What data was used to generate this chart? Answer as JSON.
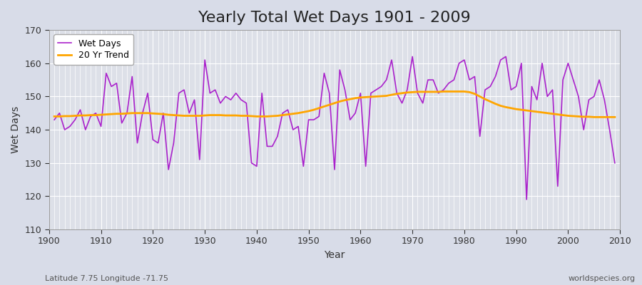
{
  "title": "Yearly Total Wet Days 1901 - 2009",
  "xlabel": "Year",
  "ylabel": "Wet Days",
  "subtitle": "Latitude 7.75 Longitude -71.75",
  "watermark": "worldspecies.org",
  "years": [
    1901,
    1902,
    1903,
    1904,
    1905,
    1906,
    1907,
    1908,
    1909,
    1910,
    1911,
    1912,
    1913,
    1914,
    1915,
    1916,
    1917,
    1918,
    1919,
    1920,
    1921,
    1922,
    1923,
    1924,
    1925,
    1926,
    1927,
    1928,
    1929,
    1930,
    1931,
    1932,
    1933,
    1934,
    1935,
    1936,
    1937,
    1938,
    1939,
    1940,
    1941,
    1942,
    1943,
    1944,
    1945,
    1946,
    1947,
    1948,
    1949,
    1950,
    1951,
    1952,
    1953,
    1954,
    1955,
    1956,
    1957,
    1958,
    1959,
    1960,
    1961,
    1962,
    1963,
    1964,
    1965,
    1966,
    1967,
    1968,
    1969,
    1970,
    1971,
    1972,
    1973,
    1974,
    1975,
    1976,
    1977,
    1978,
    1979,
    1980,
    1981,
    1982,
    1983,
    1984,
    1985,
    1986,
    1987,
    1988,
    1989,
    1990,
    1991,
    1992,
    1993,
    1994,
    1995,
    1996,
    1997,
    1998,
    1999,
    2000,
    2001,
    2002,
    2003,
    2004,
    2005,
    2006,
    2007,
    2008,
    2009
  ],
  "wet_days": [
    143,
    145,
    140,
    141,
    143,
    146,
    140,
    144,
    145,
    141,
    157,
    153,
    154,
    142,
    145,
    156,
    136,
    145,
    151,
    137,
    136,
    145,
    128,
    136,
    151,
    152,
    145,
    149,
    131,
    161,
    151,
    152,
    148,
    150,
    149,
    151,
    149,
    148,
    130,
    129,
    151,
    135,
    135,
    138,
    145,
    146,
    140,
    141,
    129,
    143,
    143,
    144,
    157,
    151,
    128,
    158,
    152,
    143,
    145,
    151,
    129,
    151,
    152,
    153,
    155,
    161,
    151,
    148,
    152,
    162,
    151,
    148,
    155,
    155,
    151,
    152,
    154,
    155,
    160,
    161,
    155,
    156,
    138,
    152,
    153,
    156,
    161,
    162,
    152,
    153,
    160,
    119,
    153,
    149,
    160,
    150,
    152,
    123,
    155,
    160,
    155,
    150,
    140,
    149,
    150,
    155,
    149,
    140,
    130
  ],
  "trend_values": [
    144.0,
    144.0,
    144.1,
    144.1,
    144.2,
    144.3,
    144.3,
    144.4,
    144.4,
    144.5,
    144.6,
    144.7,
    144.8,
    144.8,
    144.9,
    145.0,
    145.0,
    145.0,
    145.0,
    144.9,
    144.8,
    144.7,
    144.5,
    144.4,
    144.3,
    144.2,
    144.2,
    144.2,
    144.2,
    144.3,
    144.4,
    144.4,
    144.4,
    144.3,
    144.3,
    144.3,
    144.2,
    144.2,
    144.1,
    144.0,
    144.0,
    144.0,
    144.1,
    144.2,
    144.4,
    144.6,
    144.8,
    145.0,
    145.3,
    145.6,
    146.0,
    146.5,
    147.0,
    147.5,
    148.0,
    148.5,
    148.9,
    149.2,
    149.5,
    149.7,
    149.8,
    149.9,
    150.0,
    150.1,
    150.2,
    150.5,
    150.8,
    151.0,
    151.2,
    151.3,
    151.4,
    151.4,
    151.4,
    151.4,
    151.4,
    151.5,
    151.5,
    151.5,
    151.5,
    151.5,
    151.3,
    150.8,
    150.0,
    149.2,
    148.5,
    147.8,
    147.2,
    146.8,
    146.5,
    146.2,
    146.0,
    145.8,
    145.6,
    145.4,
    145.2,
    145.0,
    144.8,
    144.6,
    144.4,
    144.2,
    144.1,
    144.0,
    143.9,
    143.9,
    143.8,
    143.8,
    143.8,
    143.8,
    143.8
  ],
  "wet_days_color": "#aa22cc",
  "trend_color": "#FFA500",
  "bg_color": "#d8dce8",
  "plot_bg_color": "#dde0e8",
  "grid_color": "#ffffff",
  "ylim": [
    110,
    170
  ],
  "yticks": [
    110,
    120,
    130,
    140,
    150,
    160,
    170
  ],
  "xlim_left": 1900,
  "xlim_right": 2010,
  "title_fontsize": 16,
  "axis_fontsize": 10,
  "tick_fontsize": 9,
  "legend_fontsize": 9
}
